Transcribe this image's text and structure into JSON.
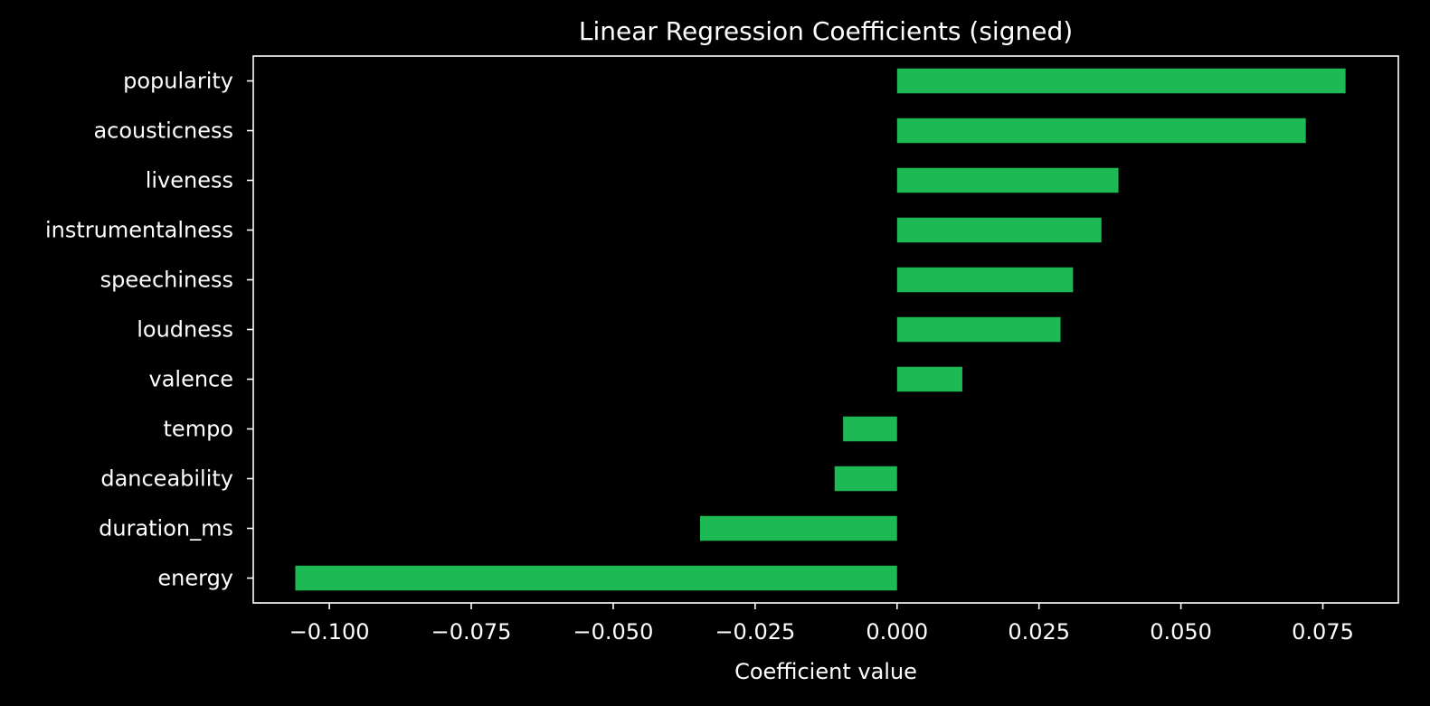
{
  "chart_data": {
    "type": "bar",
    "orientation": "horizontal",
    "title": "Linear Regression Coefficients (signed)",
    "xlabel": "Coefficient value",
    "ylabel": "",
    "categories": [
      "popularity",
      "acousticness",
      "liveness",
      "instrumentalness",
      "speechiness",
      "loudness",
      "valence",
      "tempo",
      "danceability",
      "duration_ms",
      "energy"
    ],
    "values": [
      0.079,
      0.072,
      0.039,
      0.036,
      0.031,
      0.0288,
      0.0115,
      -0.0095,
      -0.011,
      -0.0347,
      -0.106
    ],
    "xlim": [
      -0.1134,
      0.0883
    ],
    "xticks": [
      -0.1,
      -0.075,
      -0.05,
      -0.025,
      0.0,
      0.025,
      0.05,
      0.075
    ],
    "xtick_labels": [
      "−0.100",
      "−0.075",
      "−0.050",
      "−0.025",
      "0.000",
      "0.025",
      "0.050",
      "0.075"
    ],
    "bar_color": "#1DB954",
    "background_color": "#000000",
    "text_color": "#FFFFFF",
    "grid": false,
    "legend": null
  }
}
